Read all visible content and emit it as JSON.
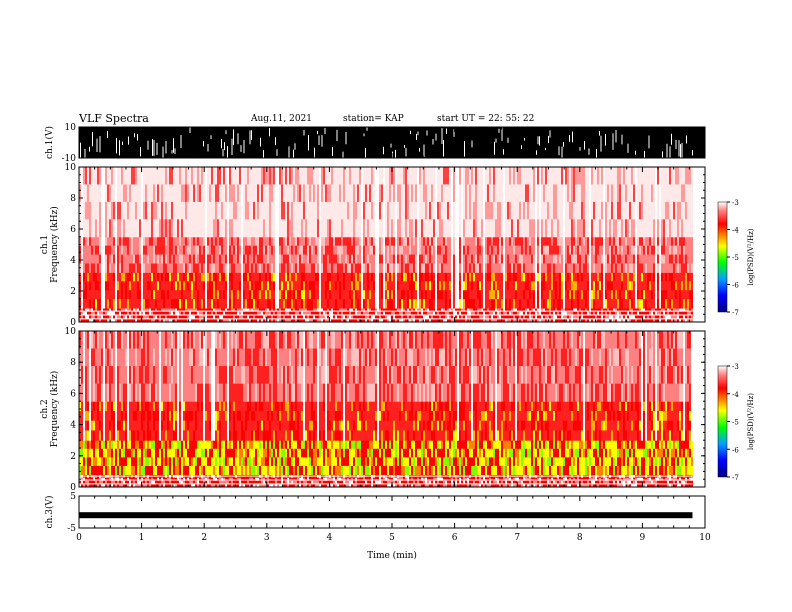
{
  "header": {
    "title": "VLF Spectra",
    "date": "Aug.11, 2021",
    "station": "station= KAP",
    "start_ut": "start  UT =   22: 55: 22"
  },
  "colors": {
    "spectrogram_low": "#0000ff",
    "spectrogram_mid": "#00ff00",
    "spectrogram_high": "#ff0000",
    "background": "#ffffff",
    "waveform": "#000000"
  },
  "chart_data": [
    {
      "id": "ch1-waveform",
      "type": "line",
      "ylabel": "ch.1(V)",
      "ylim": [
        -10,
        10
      ],
      "ytick_labels": [
        "10",
        "-10"
      ],
      "xlim": [
        0,
        10
      ],
      "description_values": {
        "envelope_min": -10,
        "envelope_max": 10,
        "x_end_min": 9.8
      }
    },
    {
      "id": "ch1-spectrogram",
      "type": "heatmap",
      "ylabel": "ch.1\nFrequency (kHz)",
      "ylim": [
        0,
        10
      ],
      "ytick_labels": [
        "0",
        "2",
        "4",
        "6",
        "8",
        "10"
      ],
      "xlim": [
        0,
        10
      ],
      "x_end_min": 9.8,
      "intensity_bands_khz": [
        {
          "from": 0,
          "to": 0.9,
          "level": "striped"
        },
        {
          "from": 0.9,
          "to": 3.2,
          "level": "high"
        },
        {
          "from": 3.2,
          "to": 5.5,
          "level": "mid"
        },
        {
          "from": 5.5,
          "to": 10,
          "level": "low"
        }
      ],
      "colorbar": {
        "label": "log(PSD)(V²/Hz)",
        "range": [
          -7,
          -3
        ],
        "tick_labels": [
          "-3",
          "-4",
          "-5",
          "-6",
          "-7"
        ]
      }
    },
    {
      "id": "ch2-spectrogram",
      "type": "heatmap",
      "ylabel": "ch.2\nFrequency (kHz)",
      "ylim": [
        0,
        10
      ],
      "ytick_labels": [
        "0",
        "2",
        "4",
        "6",
        "8",
        "10"
      ],
      "xlim": [
        0,
        10
      ],
      "x_end_min": 9.8,
      "intensity_bands_khz": [
        {
          "from": 0,
          "to": 0.8,
          "level": "striped"
        },
        {
          "from": 0.8,
          "to": 3.0,
          "level": "very-high"
        },
        {
          "from": 3.0,
          "to": 5.5,
          "level": "high"
        },
        {
          "from": 5.5,
          "to": 10,
          "level": "mid"
        }
      ],
      "colorbar": {
        "label": "log(PSD)(V²/Hz)",
        "range": [
          -7,
          -3
        ],
        "tick_labels": [
          "-3",
          "-4",
          "-5",
          "-6",
          "-7"
        ]
      }
    },
    {
      "id": "ch3-waveform",
      "type": "line",
      "ylabel": "ch.3(V)",
      "ylim": [
        -5,
        5
      ],
      "ytick_labels": [
        "5",
        "-5"
      ],
      "xlim": [
        0,
        10
      ],
      "x_end_min": 9.8,
      "baseline_value": -1
    }
  ],
  "xaxis": {
    "label": "Time (min)",
    "tick_labels": [
      "0",
      "1",
      "2",
      "3",
      "4",
      "5",
      "6",
      "7",
      "8",
      "9",
      "10"
    ]
  }
}
